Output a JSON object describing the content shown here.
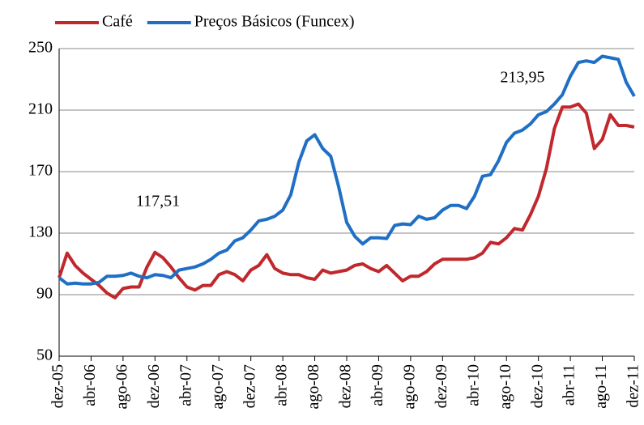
{
  "chart_data": {
    "type": "line",
    "categories": [
      "dez-05",
      null,
      null,
      null,
      "abr-06",
      null,
      null,
      null,
      "ago-06",
      null,
      null,
      null,
      "dez-06",
      null,
      null,
      null,
      "abr-07",
      null,
      null,
      null,
      "ago-07",
      null,
      null,
      null,
      "dez-07",
      null,
      null,
      null,
      "abr-08",
      null,
      null,
      null,
      "ago-08",
      null,
      null,
      null,
      "dez-08",
      null,
      null,
      null,
      "abr-09",
      null,
      null,
      null,
      "ago-09",
      null,
      null,
      null,
      "dez-09",
      null,
      null,
      null,
      "abr-10",
      null,
      null,
      null,
      "ago-10",
      null,
      null,
      null,
      "dez-10",
      null,
      null,
      null,
      "abr-11",
      null,
      null,
      null,
      "ago-11",
      null,
      null,
      null,
      "dez-11"
    ],
    "series": [
      {
        "name": "Café",
        "color": "#c0282d",
        "values": [
          101,
          117,
          109,
          104,
          100,
          96,
          91,
          88,
          94,
          95,
          95,
          108,
          117.51,
          114,
          108,
          101,
          95,
          93,
          96,
          96,
          103,
          105,
          103,
          99,
          106,
          109,
          116,
          107,
          104,
          103,
          103,
          101,
          100,
          106,
          104,
          105,
          106,
          109,
          110,
          107,
          105,
          109,
          104,
          99,
          102,
          102,
          105,
          110,
          113,
          113,
          113,
          113,
          114,
          117,
          124,
          123,
          127,
          133,
          132,
          142,
          154,
          172,
          198,
          212,
          212,
          213.95,
          208,
          185,
          191,
          207,
          200,
          200,
          199
        ]
      },
      {
        "name": "Preços Básicos (Funcex)",
        "color": "#1f6fc5",
        "values": [
          101,
          97,
          97.5,
          97,
          97,
          98,
          102,
          102,
          102.5,
          104,
          102,
          101,
          103,
          102.5,
          101,
          106,
          107,
          108,
          110,
          113,
          117,
          119,
          125,
          127,
          132,
          138,
          139,
          141,
          145,
          155,
          176,
          190,
          194,
          185,
          180,
          160,
          137,
          128,
          123,
          127,
          127,
          126.5,
          135,
          136,
          135.5,
          141,
          139,
          140,
          145,
          148,
          148,
          146,
          154,
          167,
          168,
          177,
          189,
          195,
          197,
          201,
          207,
          209,
          214,
          220,
          232,
          241,
          242,
          241,
          245,
          244,
          243,
          228,
          219
        ]
      }
    ],
    "annotations": [
      "117,51",
      "213,95"
    ],
    "ylim": [
      50,
      250
    ],
    "yticks": [
      50,
      90,
      130,
      170,
      210,
      250
    ],
    "grid": true
  }
}
